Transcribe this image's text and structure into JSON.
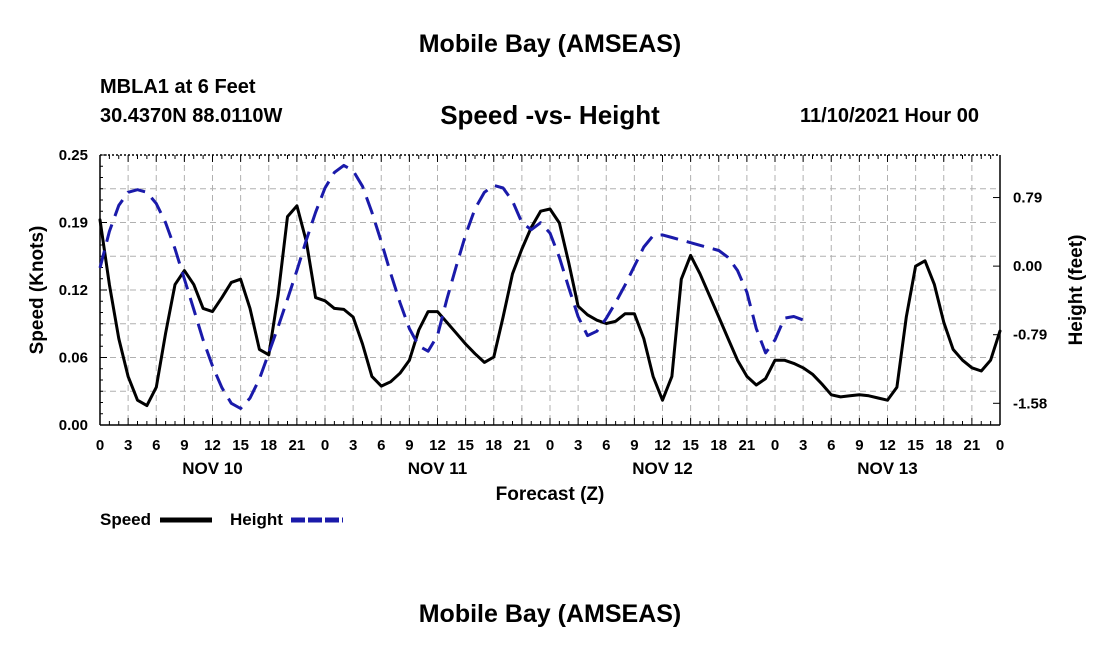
{
  "header": {
    "title": "Mobile Bay (AMSEAS)",
    "station": "MBLA1 at 6 Feet",
    "coords": "30.4370N  88.0110W",
    "chart_title": "Speed -vs- Height",
    "datetime": "11/10/2021 Hour 00"
  },
  "footer": {
    "title": "Mobile Bay (AMSEAS)"
  },
  "colors": {
    "speed": "#000000",
    "height": "#1a1aaa",
    "grid": "#b0b0b0"
  },
  "chart_data": {
    "type": "line",
    "title": "Speed -vs- Height",
    "xlabel": "Forecast (Z)",
    "ylabel": "Speed (Knots)",
    "y2label": "Height (feet)",
    "xlim": [
      0,
      96
    ],
    "ylim": [
      0,
      0.25
    ],
    "y2lim": [
      -1.83,
      1.28
    ],
    "x_tick_labels": [
      "0",
      "3",
      "6",
      "9",
      "12",
      "15",
      "18",
      "21",
      "0",
      "3",
      "6",
      "9",
      "12",
      "15",
      "18",
      "21",
      "0",
      "3",
      "6",
      "9",
      "12",
      "15",
      "18",
      "21",
      "0",
      "3",
      "6",
      "9",
      "12",
      "15",
      "18",
      "21",
      "0"
    ],
    "day_labels": [
      {
        "x": 12,
        "label": "NOV 10"
      },
      {
        "x": 36,
        "label": "NOV 11"
      },
      {
        "x": 60,
        "label": "NOV 12"
      },
      {
        "x": 84,
        "label": "NOV 13"
      }
    ],
    "y_ticks": [
      {
        "value": 0.0,
        "label": "0.00"
      },
      {
        "value": 0.0625,
        "label": "0.06"
      },
      {
        "value": 0.125,
        "label": "0.12"
      },
      {
        "value": 0.1875,
        "label": "0.19"
      },
      {
        "value": 0.25,
        "label": "0.25"
      }
    ],
    "y2_ticks": [
      {
        "value": 0.79,
        "label": "0.79"
      },
      {
        "value": 0.0,
        "label": "0.00"
      },
      {
        "value": -0.79,
        "label": "-0.79"
      },
      {
        "value": -1.58,
        "label": "-1.58"
      }
    ],
    "legend": [
      {
        "label": "Speed",
        "series": "speed"
      },
      {
        "label": "Height",
        "series": "height"
      }
    ],
    "series": [
      {
        "name": "Speed",
        "axis": "left",
        "style": "solid",
        "points": [
          [
            0,
            0.19
          ],
          [
            1,
            0.13
          ],
          [
            2,
            0.08
          ],
          [
            3,
            0.045
          ],
          [
            4,
            0.023
          ],
          [
            5,
            0.018
          ],
          [
            6,
            0.035
          ],
          [
            7,
            0.085
          ],
          [
            8,
            0.13
          ],
          [
            9,
            0.143
          ],
          [
            10,
            0.13
          ],
          [
            11,
            0.108
          ],
          [
            12,
            0.105
          ],
          [
            13,
            0.118
          ],
          [
            14,
            0.132
          ],
          [
            15,
            0.135
          ],
          [
            16,
            0.108
          ],
          [
            17,
            0.07
          ],
          [
            18,
            0.065
          ],
          [
            19,
            0.12
          ],
          [
            20,
            0.193
          ],
          [
            21,
            0.203
          ],
          [
            22,
            0.17
          ],
          [
            23,
            0.118
          ],
          [
            24,
            0.115
          ],
          [
            25,
            0.108
          ],
          [
            26,
            0.107
          ],
          [
            27,
            0.1
          ],
          [
            28,
            0.075
          ],
          [
            29,
            0.045
          ],
          [
            30,
            0.036
          ],
          [
            31,
            0.04
          ],
          [
            32,
            0.048
          ],
          [
            33,
            0.06
          ],
          [
            34,
            0.088
          ],
          [
            35,
            0.105
          ],
          [
            36,
            0.105
          ],
          [
            37,
            0.095
          ],
          [
            38,
            0.085
          ],
          [
            39,
            0.075
          ],
          [
            40,
            0.066
          ],
          [
            41,
            0.058
          ],
          [
            42,
            0.063
          ],
          [
            43,
            0.1
          ],
          [
            44,
            0.14
          ],
          [
            45,
            0.163
          ],
          [
            46,
            0.183
          ],
          [
            47,
            0.198
          ],
          [
            48,
            0.2
          ],
          [
            49,
            0.187
          ],
          [
            50,
            0.15
          ],
          [
            51,
            0.11
          ],
          [
            52,
            0.102
          ],
          [
            53,
            0.097
          ],
          [
            54,
            0.094
          ],
          [
            55,
            0.096
          ],
          [
            56,
            0.103
          ],
          [
            57,
            0.103
          ],
          [
            58,
            0.08
          ],
          [
            59,
            0.045
          ],
          [
            60,
            0.023
          ],
          [
            61,
            0.045
          ],
          [
            62,
            0.135
          ],
          [
            63,
            0.157
          ],
          [
            64,
            0.14
          ],
          [
            65,
            0.12
          ],
          [
            66,
            0.1
          ],
          [
            67,
            0.08
          ],
          [
            68,
            0.06
          ],
          [
            69,
            0.045
          ],
          [
            70,
            0.037
          ],
          [
            71,
            0.043
          ],
          [
            72,
            0.06
          ],
          [
            73,
            0.06
          ],
          [
            74,
            0.057
          ],
          [
            75,
            0.053
          ],
          [
            76,
            0.047
          ],
          [
            77,
            0.038
          ],
          [
            78,
            0.028
          ],
          [
            79,
            0.026
          ],
          [
            80,
            0.027
          ],
          [
            81,
            0.028
          ],
          [
            82,
            0.027
          ],
          [
            83,
            0.025
          ],
          [
            84,
            0.023
          ],
          [
            85,
            0.035
          ],
          [
            86,
            0.1
          ],
          [
            87,
            0.147
          ],
          [
            88,
            0.152
          ],
          [
            89,
            0.13
          ],
          [
            90,
            0.095
          ],
          [
            91,
            0.07
          ],
          [
            92,
            0.06
          ],
          [
            93,
            0.053
          ],
          [
            94,
            0.05
          ],
          [
            95,
            0.06
          ],
          [
            96,
            0.087
          ]
        ]
      },
      {
        "name": "Height",
        "axis": "right",
        "style": "dashed",
        "points": [
          [
            0,
            -0.02
          ],
          [
            1,
            0.4
          ],
          [
            2,
            0.7
          ],
          [
            3,
            0.85
          ],
          [
            4,
            0.88
          ],
          [
            5,
            0.85
          ],
          [
            6,
            0.72
          ],
          [
            7,
            0.5
          ],
          [
            8,
            0.2
          ],
          [
            9,
            -0.15
          ],
          [
            10,
            -0.5
          ],
          [
            11,
            -0.85
          ],
          [
            12,
            -1.15
          ],
          [
            13,
            -1.4
          ],
          [
            14,
            -1.58
          ],
          [
            15,
            -1.64
          ],
          [
            16,
            -1.52
          ],
          [
            17,
            -1.3
          ],
          [
            18,
            -1.0
          ],
          [
            19,
            -0.7
          ],
          [
            20,
            -0.38
          ],
          [
            21,
            -0.05
          ],
          [
            22,
            0.3
          ],
          [
            23,
            0.62
          ],
          [
            24,
            0.9
          ],
          [
            25,
            1.08
          ],
          [
            26,
            1.16
          ],
          [
            27,
            1.1
          ],
          [
            28,
            0.92
          ],
          [
            29,
            0.62
          ],
          [
            30,
            0.28
          ],
          [
            31,
            -0.08
          ],
          [
            32,
            -0.42
          ],
          [
            33,
            -0.72
          ],
          [
            34,
            -0.92
          ],
          [
            35,
            -0.98
          ],
          [
            36,
            -0.8
          ],
          [
            37,
            -0.38
          ],
          [
            38,
            0.0
          ],
          [
            39,
            0.36
          ],
          [
            40,
            0.66
          ],
          [
            41,
            0.85
          ],
          [
            42,
            0.93
          ],
          [
            43,
            0.9
          ],
          [
            44,
            0.75
          ],
          [
            45,
            0.5
          ],
          [
            46,
            0.42
          ],
          [
            47,
            0.5
          ],
          [
            48,
            0.38
          ],
          [
            49,
            0.1
          ],
          [
            50,
            -0.25
          ],
          [
            51,
            -0.58
          ],
          [
            52,
            -0.8
          ],
          [
            53,
            -0.75
          ],
          [
            54,
            -0.6
          ],
          [
            55,
            -0.42
          ],
          [
            56,
            -0.22
          ],
          [
            57,
            0.0
          ],
          [
            58,
            0.22
          ],
          [
            59,
            0.35
          ],
          [
            60,
            0.36
          ],
          [
            61,
            0.33
          ],
          [
            62,
            0.3
          ],
          [
            63,
            0.27
          ],
          [
            64,
            0.24
          ],
          [
            65,
            0.21
          ],
          [
            66,
            0.18
          ],
          [
            67,
            0.1
          ],
          [
            68,
            -0.05
          ],
          [
            69,
            -0.3
          ],
          [
            70,
            -0.72
          ],
          [
            71,
            -1.0
          ],
          [
            72,
            -0.85
          ],
          [
            73,
            -0.6
          ],
          [
            74,
            -0.58
          ],
          [
            75,
            -0.62
          ]
        ]
      }
    ]
  },
  "legend": {
    "speed_label": "Speed",
    "height_label": "Height"
  }
}
